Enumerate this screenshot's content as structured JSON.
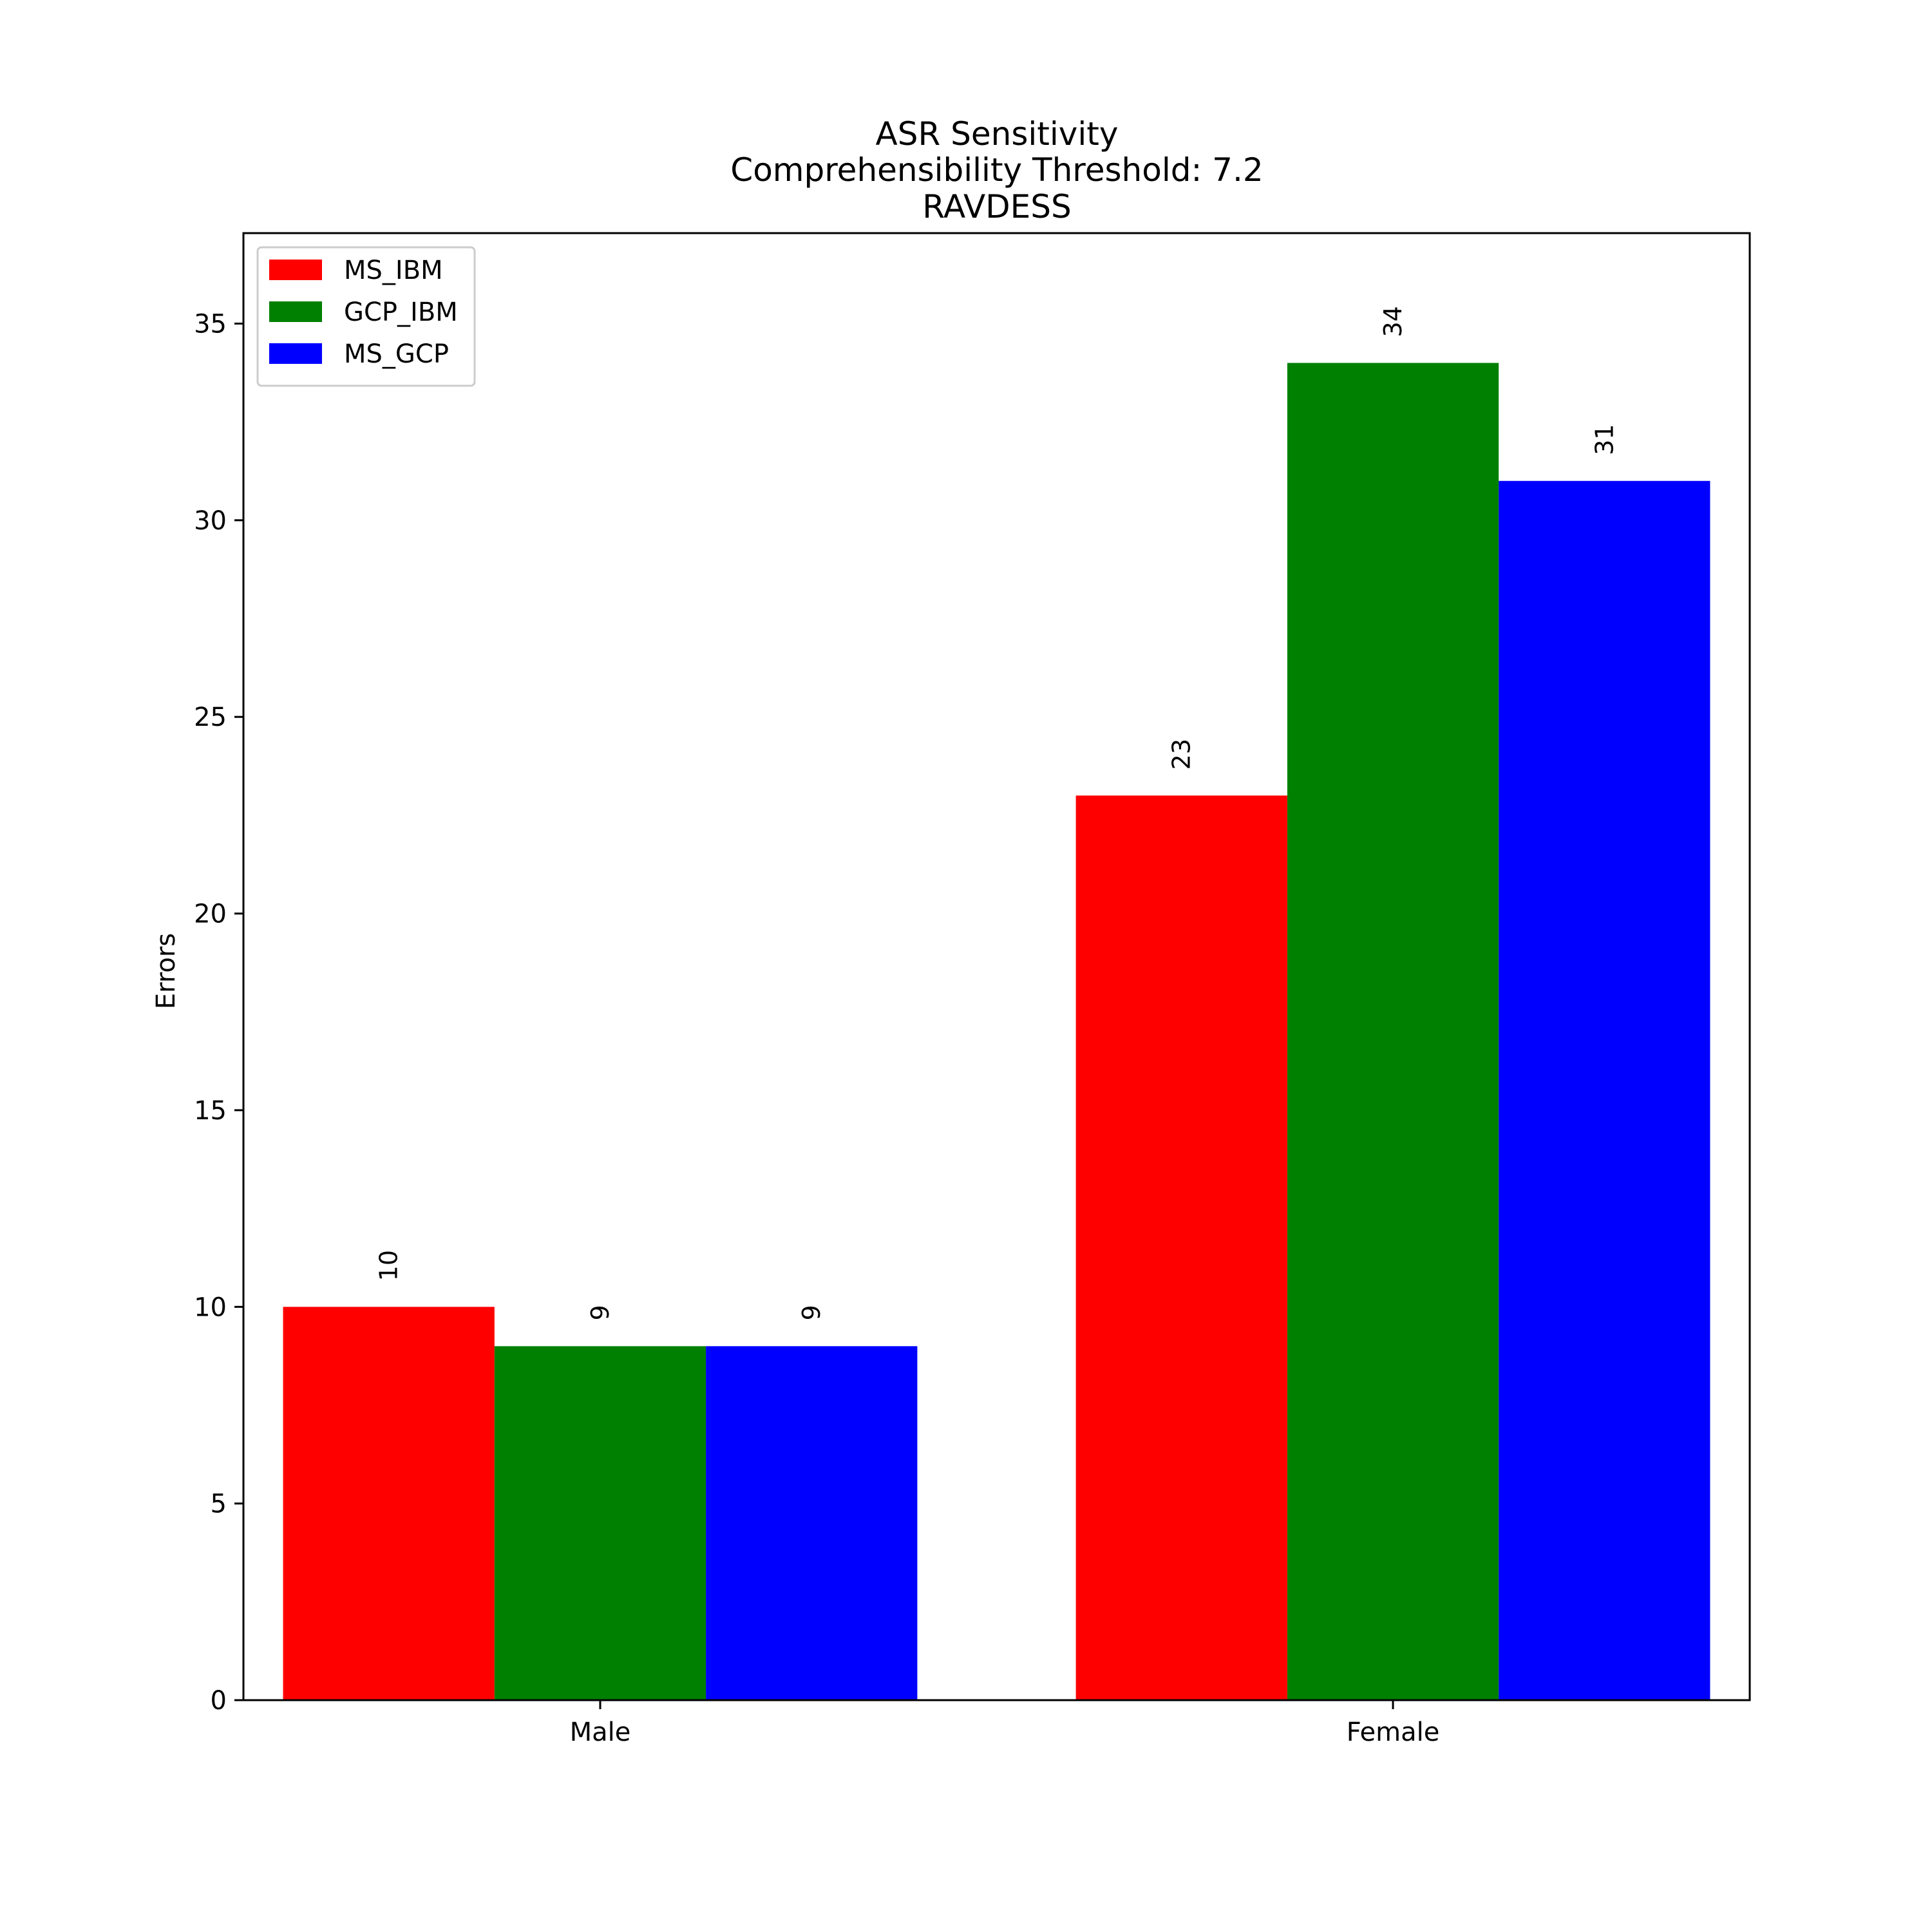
{
  "chart_data": {
    "type": "bar",
    "title_lines": [
      "ASR Sensitivity",
      "Comprehensibility Threshold: 7.2",
      "RAVDESS"
    ],
    "xlabel": "",
    "ylabel": "Errors",
    "categories": [
      "Male",
      "Female"
    ],
    "ylim": [
      0,
      37.3
    ],
    "yticks": [
      0,
      5,
      10,
      15,
      20,
      25,
      30,
      35
    ],
    "grid": false,
    "legend_position": "top-left",
    "series": [
      {
        "name": "MS_IBM",
        "color": "#ff0000",
        "values": [
          10,
          23
        ]
      },
      {
        "name": "GCP_IBM",
        "color": "#008000",
        "values": [
          9,
          34
        ]
      },
      {
        "name": "MS_GCP",
        "color": "#0000ff",
        "values": [
          9,
          31
        ]
      }
    ]
  }
}
